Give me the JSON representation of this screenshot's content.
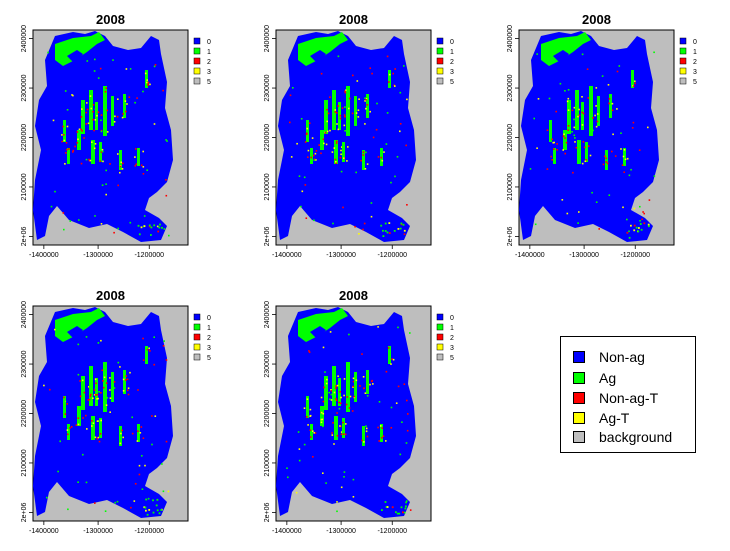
{
  "chart_data": [
    {
      "type": "heatmap",
      "title": "2008",
      "y_ticks": [
        "2400000",
        "2300000",
        "2200000",
        "2100000",
        "2e+06"
      ],
      "x_ticks": [
        "-1400000",
        "-1300000",
        "-1200000"
      ],
      "legend": [
        {
          "label": "0",
          "color": "#0000FF"
        },
        {
          "label": "1",
          "color": "#00FF00"
        },
        {
          "label": "2",
          "color": "#FF0000"
        },
        {
          "label": "3",
          "color": "#FFFF00"
        },
        {
          "label": "5",
          "color": "#BEBEBE"
        }
      ]
    },
    {
      "type": "heatmap",
      "title": "2008",
      "y_ticks": [
        "2400000",
        "2300000",
        "2200000",
        "2100000",
        "2e+06"
      ],
      "x_ticks": [
        "-1400000",
        "-1300000",
        "-1200000"
      ],
      "legend": [
        {
          "label": "0",
          "color": "#0000FF"
        },
        {
          "label": "1",
          "color": "#00FF00"
        },
        {
          "label": "2",
          "color": "#FF0000"
        },
        {
          "label": "3",
          "color": "#FFFF00"
        },
        {
          "label": "5",
          "color": "#BEBEBE"
        }
      ]
    },
    {
      "type": "heatmap",
      "title": "2008",
      "y_ticks": [
        "2400000",
        "2300000",
        "2200000",
        "2100000",
        "2e+06"
      ],
      "x_ticks": [
        "-1400000",
        "-1300000",
        "-1200000"
      ],
      "legend": [
        {
          "label": "0",
          "color": "#0000FF"
        },
        {
          "label": "1",
          "color": "#00FF00"
        },
        {
          "label": "2",
          "color": "#FF0000"
        },
        {
          "label": "3",
          "color": "#FFFF00"
        },
        {
          "label": "5",
          "color": "#BEBEBE"
        }
      ]
    },
    {
      "type": "heatmap",
      "title": "2008",
      "y_ticks": [
        "2400000",
        "2300000",
        "2200000",
        "2100000",
        "2e+06"
      ],
      "x_ticks": [
        "-1400000",
        "-1300000",
        "-1200000"
      ],
      "legend": [
        {
          "label": "0",
          "color": "#0000FF"
        },
        {
          "label": "1",
          "color": "#00FF00"
        },
        {
          "label": "2",
          "color": "#FF0000"
        },
        {
          "label": "3",
          "color": "#FFFF00"
        },
        {
          "label": "5",
          "color": "#BEBEBE"
        }
      ]
    },
    {
      "type": "heatmap",
      "title": "2008",
      "y_ticks": [
        "2400000",
        "2300000",
        "2200000",
        "2100000",
        "2e+06"
      ],
      "x_ticks": [
        "-1400000",
        "-1300000",
        "-1200000"
      ],
      "legend": [
        {
          "label": "0",
          "color": "#0000FF"
        },
        {
          "label": "1",
          "color": "#00FF00"
        },
        {
          "label": "2",
          "color": "#FF0000"
        },
        {
          "label": "3",
          "color": "#FFFF00"
        },
        {
          "label": "5",
          "color": "#BEBEBE"
        }
      ]
    }
  ],
  "class_legend": [
    {
      "label": "Non-ag",
      "color": "#0000FF"
    },
    {
      "label": "Ag",
      "color": "#00FF00"
    },
    {
      "label": "Non-ag-T",
      "color": "#FF0000"
    },
    {
      "label": "Ag-T",
      "color": "#FFFF00"
    },
    {
      "label": "background",
      "color": "#BEBEBE"
    }
  ]
}
